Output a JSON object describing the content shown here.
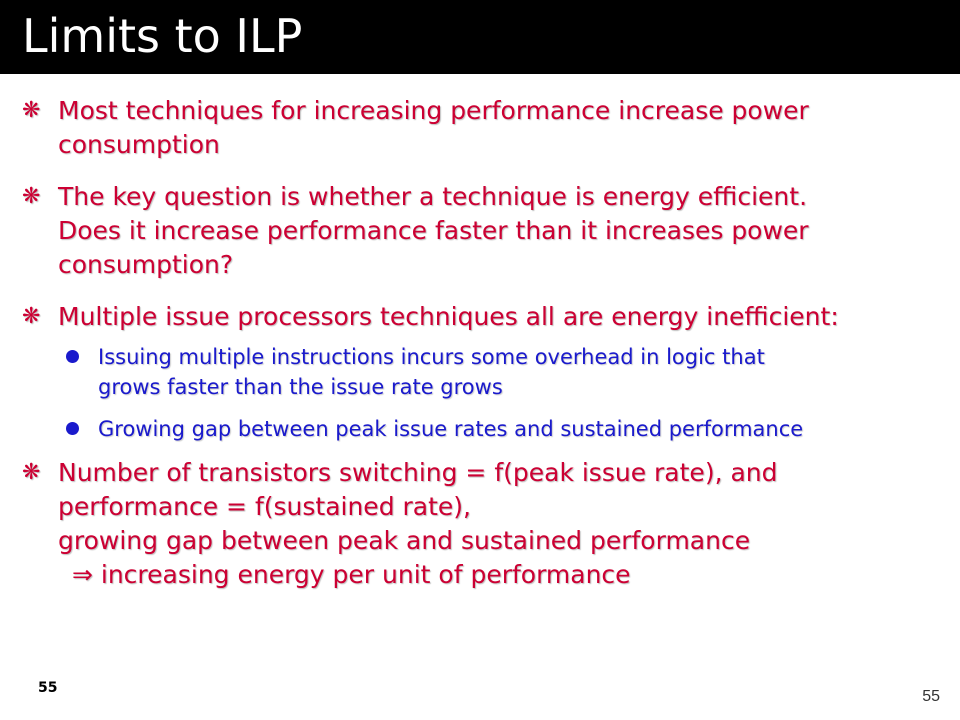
{
  "slide": {
    "title": "Limits to ILP",
    "bullet_marker": "❋",
    "bullets": [
      {
        "lines": [
          "Most techniques for increasing performance increase power",
          "consumption"
        ]
      },
      {
        "lines": [
          "The key question is whether a technique is energy efficient.",
          "Does it increase performance faster than it increases power",
          "consumption?"
        ]
      },
      {
        "lines": [
          "Multiple issue processors techniques all are energy inefficient:"
        ],
        "subbullets": [
          {
            "lines": [
              "Issuing multiple instructions incurs some overhead in logic that",
              "grows faster than the issue rate grows"
            ]
          },
          {
            "lines": [
              "Growing gap between peak issue rates and sustained performance"
            ]
          }
        ]
      },
      {
        "lines": [
          "Number of transistors switching = f(peak issue rate), and",
          "performance = f(sustained rate),",
          "growing gap between peak and sustained performance",
          "⇒ increasing energy per unit of performance"
        ]
      }
    ],
    "page_number_left": "55",
    "page_number_right": "55"
  },
  "colors": {
    "title_bar": "#000000",
    "title_text": "#ffffff",
    "bullet_text": "#cc0033",
    "subbullet_text": "#1a1acc"
  }
}
